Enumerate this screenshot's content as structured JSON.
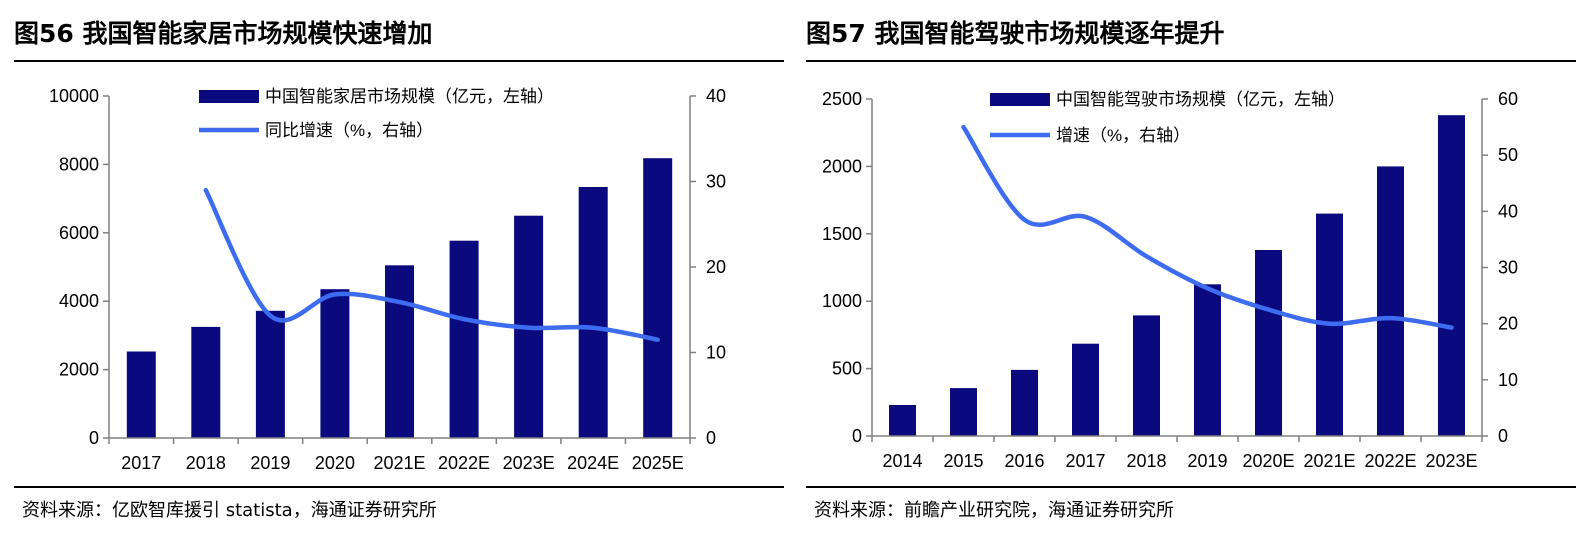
{
  "figures": [
    {
      "title": "图56 我国智能家居市场规模快速增加",
      "source": "资料来源：亿欧智库援引 statista，海通证券研究所",
      "legend": [
        "中国智能家居市场规模（亿元，左轴）",
        "同比增速（%，右轴）"
      ]
    },
    {
      "title": "图57 我国智能驾驶市场规模逐年提升",
      "source": "资料来源：前瞻产业研究院，海通证券研究所",
      "legend": [
        "中国智能驾驶市场规模（亿元，左轴）",
        "增速（%，右轴）"
      ]
    }
  ],
  "colors": {
    "bar": "#0a0a7e",
    "line": "#3e6cf0",
    "axis": "#808080"
  },
  "chart_data": [
    {
      "type": "bar",
      "categories": [
        "2017",
        "2018",
        "2019",
        "2020",
        "2021E",
        "2022E",
        "2023E",
        "2024E",
        "2025E"
      ],
      "series": [
        {
          "name": "中国智能家居市场规模（亿元，左轴）",
          "type": "bar",
          "axis": "left",
          "values": [
            2530,
            3250,
            3720,
            4350,
            5050,
            5770,
            6500,
            7340,
            8180
          ]
        },
        {
          "name": "同比增速（%，右轴）",
          "type": "line",
          "axis": "right",
          "values": [
            null,
            29,
            14.3,
            16.8,
            15.9,
            13.9,
            12.9,
            12.9,
            11.5
          ]
        }
      ],
      "ylim_left": [
        0,
        10000
      ],
      "yticks_left": [
        0,
        2000,
        4000,
        6000,
        8000,
        10000
      ],
      "ylim_right": [
        0,
        40
      ],
      "yticks_right": [
        0,
        10,
        20,
        30,
        40
      ],
      "grid": false,
      "legend_position": "top"
    },
    {
      "type": "bar",
      "categories": [
        "2014",
        "2015",
        "2016",
        "2017",
        "2018",
        "2019",
        "2020E",
        "2021E",
        "2022E",
        "2023E"
      ],
      "series": [
        {
          "name": "中国智能驾驶市场规模（亿元，左轴）",
          "type": "bar",
          "axis": "left",
          "values": [
            230,
            355,
            490,
            685,
            895,
            1125,
            1380,
            1650,
            2000,
            2380
          ]
        },
        {
          "name": "增速（%，右轴）",
          "type": "line",
          "axis": "right",
          "values": [
            null,
            55,
            38.5,
            39,
            32,
            26.3,
            22.5,
            20,
            21,
            19.3
          ]
        }
      ],
      "ylim_left": [
        0,
        2500
      ],
      "yticks_left": [
        0,
        500,
        1000,
        1500,
        2000,
        2500
      ],
      "ylim_right": [
        0,
        60
      ],
      "yticks_right": [
        0,
        10,
        20,
        30,
        40,
        50,
        60
      ],
      "grid": false,
      "legend_position": "top"
    }
  ]
}
